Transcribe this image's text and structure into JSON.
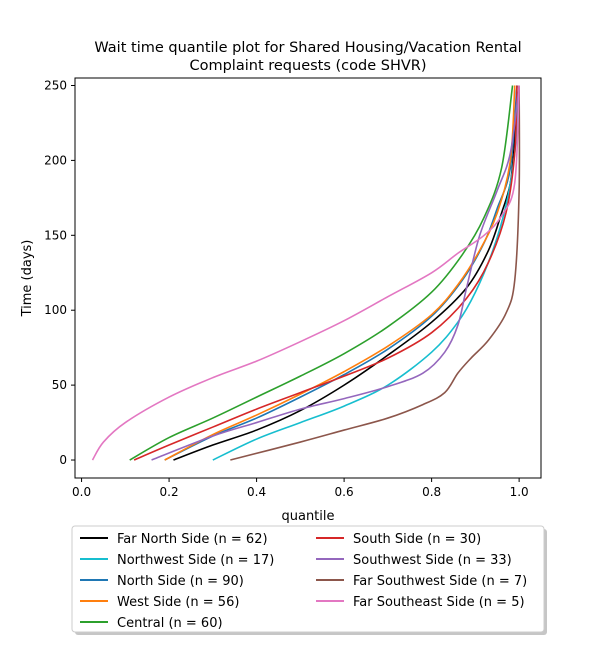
{
  "chart_data": {
    "type": "line",
    "title": "Wait time quantile plot for Shared Housing/Vacation Rental\nComplaint  requests (code SHVR)",
    "xlabel": "quantile",
    "ylabel": "Time (days)",
    "xlim": [
      -0.015,
      1.05
    ],
    "ylim": [
      -12,
      255
    ],
    "xticks": [
      0.0,
      0.2,
      0.4,
      0.6,
      0.8,
      1.0
    ],
    "xtick_labels": [
      "0.0",
      "0.2",
      "0.4",
      "0.6",
      "0.8",
      "1.0"
    ],
    "yticks": [
      0,
      50,
      100,
      150,
      200,
      250
    ],
    "ytick_labels": [
      "0",
      "50",
      "100",
      "150",
      "200",
      "250"
    ],
    "grid": false,
    "legend_position": "bottom",
    "legend_columns": 2,
    "series": [
      {
        "name": "Far North Side (n = 62)",
        "color": "#000000",
        "points": [
          [
            0.21,
            0
          ],
          [
            0.3,
            10
          ],
          [
            0.4,
            20
          ],
          [
            0.5,
            33
          ],
          [
            0.6,
            50
          ],
          [
            0.7,
            70
          ],
          [
            0.8,
            92
          ],
          [
            0.88,
            115
          ],
          [
            0.93,
            140
          ],
          [
            0.96,
            165
          ],
          [
            0.98,
            185
          ],
          [
            0.99,
            215
          ],
          [
            0.995,
            250
          ]
        ]
      },
      {
        "name": "Northwest Side (n = 17)",
        "color": "#17becf",
        "points": [
          [
            0.3,
            0
          ],
          [
            0.4,
            14
          ],
          [
            0.5,
            25
          ],
          [
            0.6,
            36
          ],
          [
            0.7,
            50
          ],
          [
            0.8,
            72
          ],
          [
            0.86,
            92
          ],
          [
            0.9,
            112
          ],
          [
            0.94,
            140
          ],
          [
            0.97,
            170
          ],
          [
            0.99,
            205
          ],
          [
            1.0,
            250
          ]
        ]
      },
      {
        "name": "North Side (n = 90)",
        "color": "#1f77b4",
        "points": [
          [
            0.19,
            0
          ],
          [
            0.3,
            16
          ],
          [
            0.4,
            28
          ],
          [
            0.5,
            42
          ],
          [
            0.6,
            57
          ],
          [
            0.7,
            74
          ],
          [
            0.8,
            96
          ],
          [
            0.87,
            120
          ],
          [
            0.92,
            145
          ],
          [
            0.95,
            168
          ],
          [
            0.98,
            195
          ],
          [
            0.995,
            250
          ]
        ]
      },
      {
        "name": "West Side (n = 56)",
        "color": "#ff7f0e",
        "points": [
          [
            0.19,
            0
          ],
          [
            0.3,
            17
          ],
          [
            0.4,
            30
          ],
          [
            0.5,
            44
          ],
          [
            0.6,
            59
          ],
          [
            0.7,
            76
          ],
          [
            0.8,
            97
          ],
          [
            0.86,
            117
          ],
          [
            0.91,
            140
          ],
          [
            0.95,
            165
          ],
          [
            0.98,
            200
          ],
          [
            0.99,
            250
          ]
        ]
      },
      {
        "name": "Central (n = 60)",
        "color": "#2ca02c",
        "points": [
          [
            0.11,
            0
          ],
          [
            0.2,
            15
          ],
          [
            0.3,
            28
          ],
          [
            0.4,
            42
          ],
          [
            0.5,
            56
          ],
          [
            0.6,
            71
          ],
          [
            0.7,
            89
          ],
          [
            0.8,
            112
          ],
          [
            0.87,
            137
          ],
          [
            0.92,
            162
          ],
          [
            0.96,
            195
          ],
          [
            0.985,
            250
          ]
        ]
      },
      {
        "name": "South Side (n = 30)",
        "color": "#d62728",
        "points": [
          [
            0.12,
            0
          ],
          [
            0.2,
            10
          ],
          [
            0.3,
            22
          ],
          [
            0.4,
            34
          ],
          [
            0.5,
            45
          ],
          [
            0.6,
            56
          ],
          [
            0.7,
            68
          ],
          [
            0.8,
            85
          ],
          [
            0.88,
            108
          ],
          [
            0.93,
            132
          ],
          [
            0.97,
            165
          ],
          [
            0.99,
            205
          ],
          [
            0.995,
            250
          ]
        ]
      },
      {
        "name": "Southwest Side (n = 33)",
        "color": "#9467bd",
        "points": [
          [
            0.16,
            0
          ],
          [
            0.3,
            16
          ],
          [
            0.4,
            25
          ],
          [
            0.5,
            34
          ],
          [
            0.6,
            41
          ],
          [
            0.7,
            49
          ],
          [
            0.78,
            58
          ],
          [
            0.83,
            72
          ],
          [
            0.86,
            90
          ],
          [
            0.88,
            115
          ],
          [
            0.91,
            150
          ],
          [
            0.95,
            180
          ],
          [
            0.98,
            205
          ],
          [
            1.0,
            250
          ]
        ]
      },
      {
        "name": "Far Southwest Side (n = 7)",
        "color": "#8c564b",
        "points": [
          [
            0.34,
            0
          ],
          [
            0.5,
            12
          ],
          [
            0.6,
            20
          ],
          [
            0.7,
            28
          ],
          [
            0.78,
            37
          ],
          [
            0.83,
            45
          ],
          [
            0.86,
            58
          ],
          [
            0.89,
            68
          ],
          [
            0.93,
            80
          ],
          [
            0.97,
            98
          ],
          [
            0.99,
            120
          ],
          [
            1.0,
            180
          ],
          [
            1.0,
            250
          ]
        ]
      },
      {
        "name": "Far Southeast Side (n = 5)",
        "color": "#e377c2",
        "points": [
          [
            0.025,
            0
          ],
          [
            0.05,
            12
          ],
          [
            0.1,
            25
          ],
          [
            0.2,
            42
          ],
          [
            0.3,
            55
          ],
          [
            0.4,
            66
          ],
          [
            0.5,
            79
          ],
          [
            0.6,
            93
          ],
          [
            0.7,
            109
          ],
          [
            0.8,
            125
          ],
          [
            0.86,
            138
          ],
          [
            0.92,
            150
          ],
          [
            0.96,
            163
          ],
          [
            0.99,
            185
          ],
          [
            1.0,
            250
          ]
        ]
      }
    ]
  }
}
